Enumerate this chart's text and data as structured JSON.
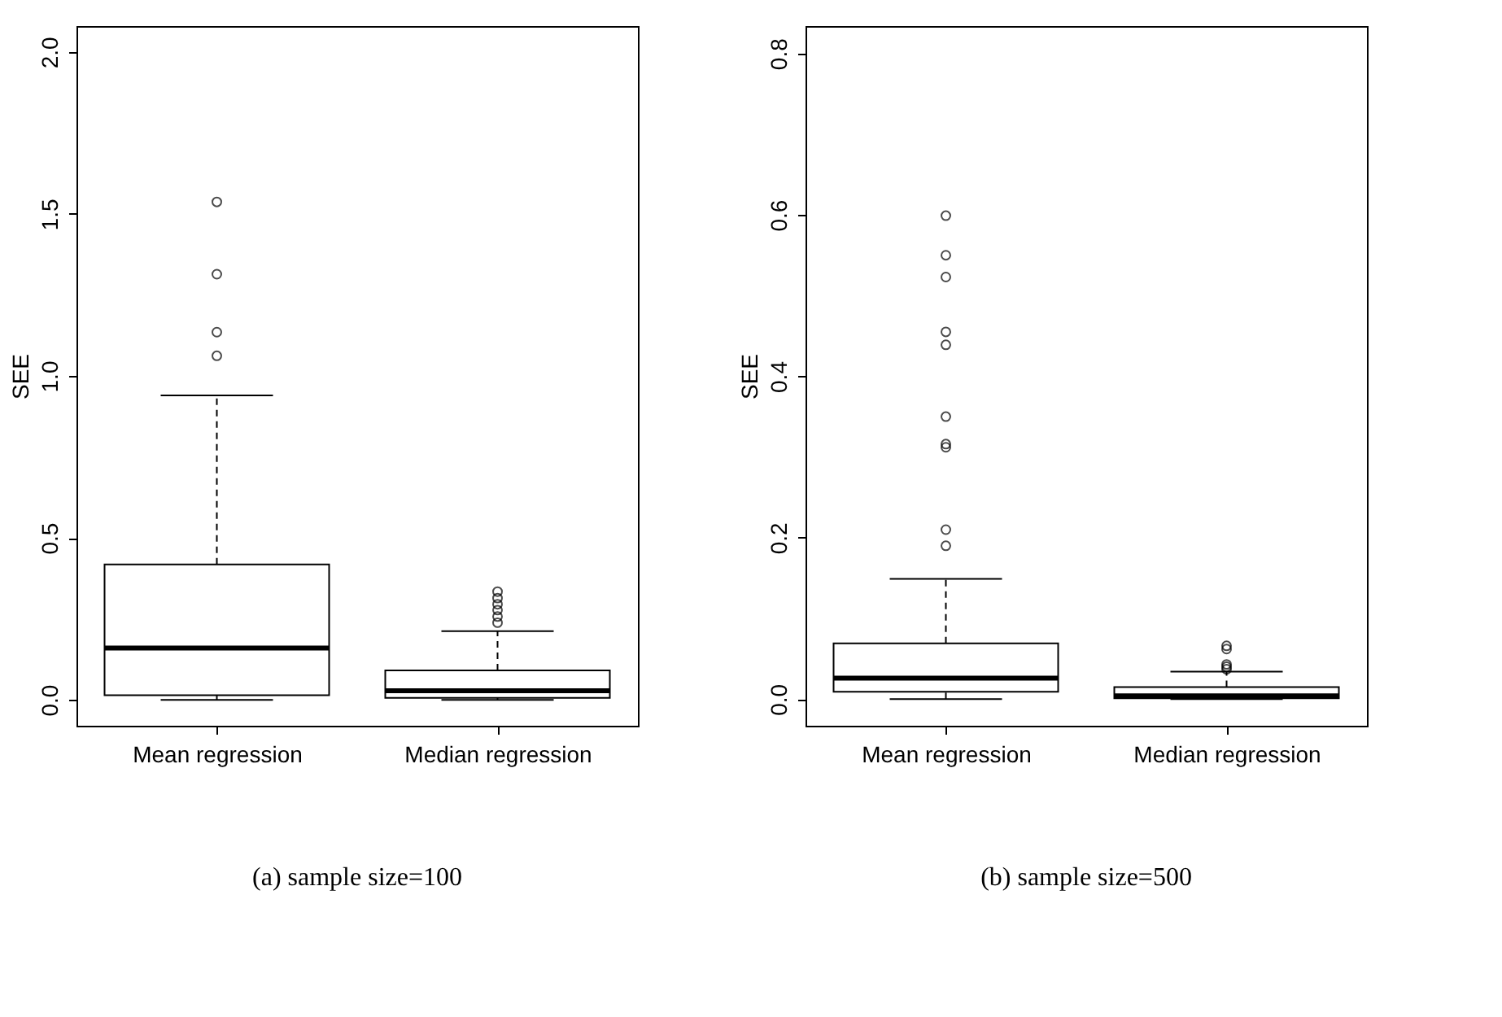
{
  "chart_data": [
    {
      "type": "box",
      "title": "(a) sample size=100",
      "ylabel": "SEE",
      "categories": [
        "Mean regression",
        "Median regression"
      ],
      "ylim": [
        -0.08,
        2.08
      ],
      "yticks": [
        {
          "value": 0,
          "label": "0.0"
        },
        0.5,
        {
          "value": 1,
          "label": "1.0"
        },
        1.5,
        {
          "value": 2,
          "label": "2.0"
        }
      ],
      "grid": false,
      "boxes": [
        {
          "low": 0,
          "q1": 0.014,
          "median": 0.16,
          "q3": 0.418,
          "high": 0.94,
          "outliers": [
            1.062,
            1.135,
            1.314,
            1.537
          ]
        },
        {
          "low": 0,
          "q1": 0.006,
          "median": 0.028,
          "q3": 0.091,
          "high": 0.212,
          "outliers": [
            0.238,
            0.257,
            0.277,
            0.295,
            0.314,
            0.334
          ]
        }
      ]
    },
    {
      "type": "box",
      "title": "(b) sample size=500",
      "ylabel": "SEE",
      "categories": [
        "Mean regression",
        "Median regression"
      ],
      "ylim": [
        -0.033,
        0.834
      ],
      "yticks": [
        {
          "value": 0,
          "label": "0.0"
        },
        0.2,
        0.4,
        0.6,
        0.8
      ],
      "grid": false,
      "boxes": [
        {
          "low": 0,
          "q1": 0.009,
          "median": 0.026,
          "q3": 0.069,
          "high": 0.149,
          "outliers": [
            0.19,
            0.21,
            0.312,
            0.316,
            0.35,
            0.439,
            0.455,
            0.523,
            0.55,
            0.599
          ]
        },
        {
          "low": 0,
          "q1": 0.001,
          "median": 0.004,
          "q3": 0.015,
          "high": 0.034,
          "outliers": [
            0.037,
            0.04,
            0.043,
            0.062,
            0.066
          ]
        }
      ]
    }
  ]
}
